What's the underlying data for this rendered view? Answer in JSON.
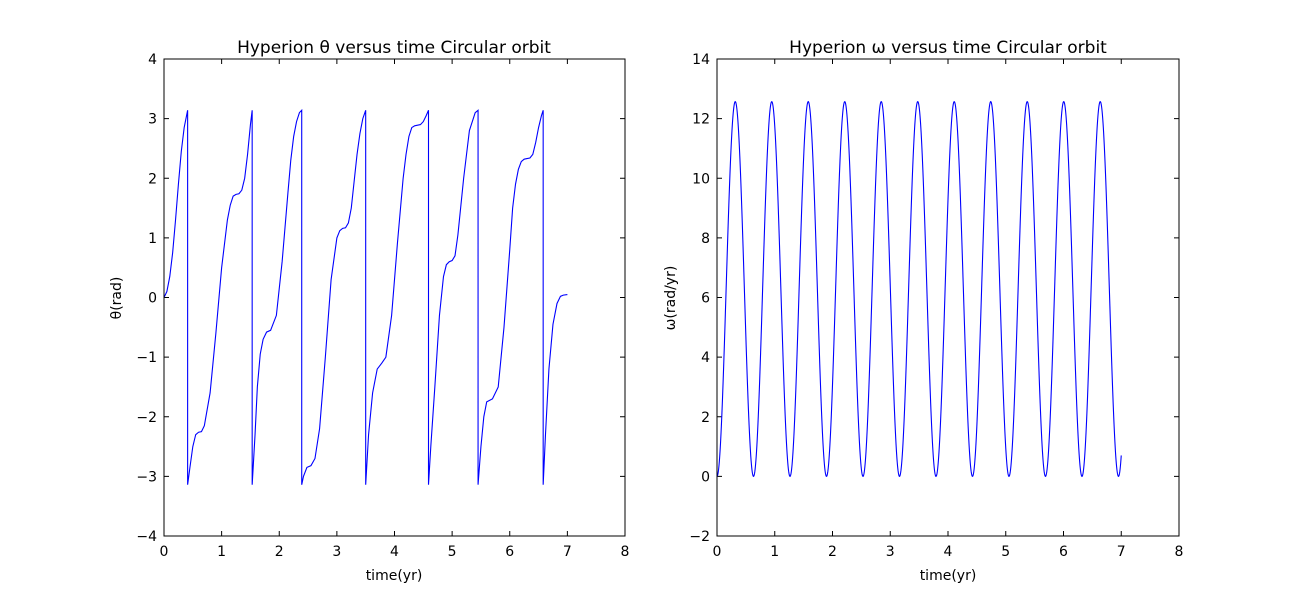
{
  "chart_data": [
    {
      "type": "line",
      "title": "Hyperion θ versus time Circular orbit",
      "xlabel": "time(yr)",
      "ylabel": "θ(rad)",
      "xlim": [
        0,
        8
      ],
      "ylim": [
        -4,
        4
      ],
      "xticks": [
        "0",
        "1",
        "2",
        "3",
        "4",
        "5",
        "6",
        "7",
        "8"
      ],
      "yticks": [
        "−4",
        "−3",
        "−2",
        "−1",
        "0",
        "1",
        "2",
        "3",
        "4"
      ],
      "grid": false,
      "color": "#0000ff",
      "series": [
        {
          "x": [
            0.0,
            0.05,
            0.1,
            0.15,
            0.2,
            0.25,
            0.3,
            0.35,
            0.41,
            0.41,
            0.45,
            0.5,
            0.55,
            0.6,
            0.65,
            0.7,
            0.8,
            0.9,
            1.0,
            1.1,
            1.15,
            1.2,
            1.25,
            1.3,
            1.35,
            1.4,
            1.45,
            1.5,
            1.53,
            1.53,
            1.58,
            1.62,
            1.67,
            1.72,
            1.78,
            1.85,
            1.95,
            2.05,
            2.15,
            2.2,
            2.25,
            2.3,
            2.35,
            2.39,
            2.39,
            2.42,
            2.48,
            2.55,
            2.62,
            2.7,
            2.8,
            2.9,
            3.0,
            3.05,
            3.1,
            3.15,
            3.2,
            3.25,
            3.3,
            3.35,
            3.4,
            3.45,
            3.5,
            3.5,
            3.55,
            3.62,
            3.7,
            3.78,
            3.85,
            3.95,
            4.05,
            4.15,
            4.2,
            4.25,
            4.3,
            4.35,
            4.4,
            4.45,
            4.5,
            4.55,
            4.59,
            4.59,
            4.63,
            4.7,
            4.78,
            4.85,
            4.9,
            4.95,
            5.0,
            5.05,
            5.1,
            5.2,
            5.3,
            5.4,
            5.45,
            5.45,
            5.5,
            5.55,
            5.6,
            5.7,
            5.8,
            5.9,
            6.0,
            6.05,
            6.1,
            6.15,
            6.2,
            6.25,
            6.3,
            6.35,
            6.4,
            6.45,
            6.5,
            6.55,
            6.58,
            6.58,
            6.62,
            6.68,
            6.75,
            6.82,
            6.88,
            6.93,
            7.0
          ],
          "y": [
            0.0,
            0.1,
            0.35,
            0.75,
            1.3,
            1.9,
            2.45,
            2.85,
            3.14,
            -3.14,
            -2.85,
            -2.5,
            -2.3,
            -2.26,
            -2.25,
            -2.15,
            -1.6,
            -0.6,
            0.5,
            1.3,
            1.55,
            1.7,
            1.73,
            1.74,
            1.8,
            2.0,
            2.4,
            2.9,
            3.14,
            -3.14,
            -2.3,
            -1.5,
            -0.95,
            -0.7,
            -0.58,
            -0.55,
            -0.3,
            0.6,
            1.75,
            2.3,
            2.7,
            2.95,
            3.1,
            3.14,
            -3.14,
            -3.0,
            -2.85,
            -2.82,
            -2.7,
            -2.2,
            -1.0,
            0.3,
            1.0,
            1.12,
            1.16,
            1.17,
            1.25,
            1.5,
            1.95,
            2.4,
            2.75,
            3.0,
            3.14,
            -3.14,
            -2.3,
            -1.6,
            -1.2,
            -1.1,
            -1.0,
            -0.3,
            0.9,
            2.0,
            2.4,
            2.7,
            2.85,
            2.88,
            2.89,
            2.9,
            2.95,
            3.05,
            3.14,
            -3.14,
            -2.5,
            -1.5,
            -0.3,
            0.35,
            0.55,
            0.6,
            0.62,
            0.7,
            1.05,
            2.0,
            2.8,
            3.1,
            3.14,
            -3.14,
            -2.5,
            -2.0,
            -1.75,
            -1.7,
            -1.5,
            -0.5,
            0.8,
            1.5,
            1.9,
            2.15,
            2.28,
            2.32,
            2.33,
            2.34,
            2.4,
            2.6,
            2.85,
            3.05,
            3.14,
            -3.14,
            -2.3,
            -1.2,
            -0.45,
            -0.1,
            0.02,
            0.04,
            0.05
          ]
        }
      ]
    },
    {
      "type": "line",
      "title": "Hyperion ω versus time Circular orbit",
      "xlabel": "time(yr)",
      "ylabel": "ω(rad/yr)",
      "xlim": [
        0,
        8
      ],
      "ylim": [
        -2,
        14
      ],
      "xticks": [
        "0",
        "1",
        "2",
        "3",
        "4",
        "5",
        "6",
        "7",
        "8"
      ],
      "yticks": [
        "−2",
        "0",
        "2",
        "4",
        "6",
        "8",
        "10",
        "12",
        "14"
      ],
      "grid": false,
      "color": "#0000ff",
      "series": [
        {
          "period": 0.632,
          "amplitude": 12.57,
          "x_range": [
            0,
            7.0
          ]
        }
      ]
    }
  ]
}
